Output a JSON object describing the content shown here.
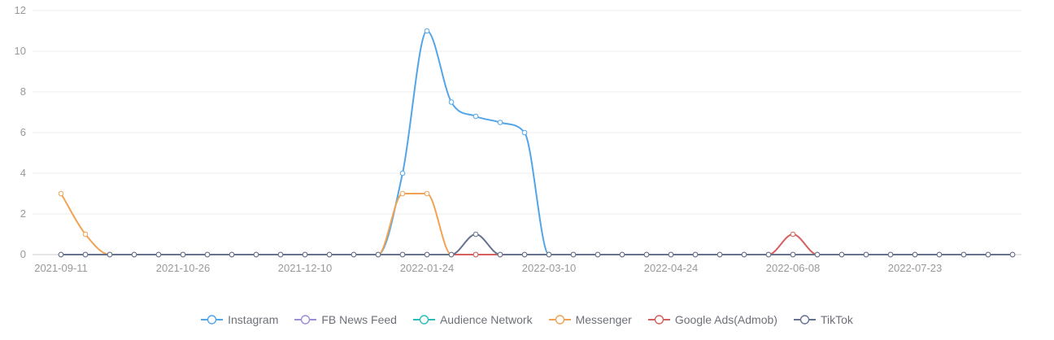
{
  "chart_data": {
    "type": "line",
    "title": "",
    "smooth": true,
    "grid": true,
    "legend_position": "bottom",
    "ylim": [
      0,
      12
    ],
    "y_ticks": [
      0,
      2,
      4,
      6,
      8,
      10,
      12
    ],
    "x": [
      "2021-09-11",
      "2021-09-20",
      "2021-09-29",
      "2021-10-08",
      "2021-10-17",
      "2021-10-26",
      "2021-11-04",
      "2021-11-13",
      "2021-11-22",
      "2021-12-01",
      "2021-12-10",
      "2021-12-19",
      "2021-12-28",
      "2022-01-06",
      "2022-01-15",
      "2022-01-24",
      "2022-02-02",
      "2022-02-11",
      "2022-02-20",
      "2022-03-01",
      "2022-03-10",
      "2022-03-19",
      "2022-03-28",
      "2022-04-06",
      "2022-04-15",
      "2022-04-24",
      "2022-05-03",
      "2022-05-12",
      "2022-05-21",
      "2022-05-30",
      "2022-06-08",
      "2022-06-17",
      "2022-06-26",
      "2022-07-05",
      "2022-07-14",
      "2022-07-23",
      "2022-08-01",
      "2022-08-10",
      "2022-08-19",
      "2022-08-28"
    ],
    "x_label_indices": [
      0,
      5,
      10,
      15,
      20,
      25,
      30,
      35
    ],
    "x_labels_shown": [
      "2021-09-11",
      "2021-10-26",
      "2021-12-10",
      "2022-01-24",
      "2022-03-10",
      "2022-04-24",
      "2022-06-08",
      "2022-07-23"
    ],
    "series": [
      {
        "name": "Instagram",
        "color": "#54a5e8",
        "values": [
          0,
          0,
          0,
          0,
          0,
          0,
          0,
          0,
          0,
          0,
          0,
          0,
          0,
          0,
          4,
          11,
          7.5,
          6.8,
          6.5,
          6,
          0,
          0,
          0,
          0,
          0,
          0,
          0,
          0,
          0,
          0,
          0,
          0,
          0,
          0,
          0,
          0,
          0,
          0,
          0,
          0
        ]
      },
      {
        "name": "FB News Feed",
        "color": "#9d8ed5",
        "values": [
          0,
          0,
          0,
          0,
          0,
          0,
          0,
          0,
          0,
          0,
          0,
          0,
          0,
          0,
          0,
          0,
          0,
          0,
          0,
          0,
          0,
          0,
          0,
          0,
          0,
          0,
          0,
          0,
          0,
          0,
          0,
          0,
          0,
          0,
          0,
          0,
          0,
          0,
          0,
          0
        ]
      },
      {
        "name": "Audience Network",
        "color": "#29bdb9",
        "values": [
          0,
          0,
          0,
          0,
          0,
          0,
          0,
          0,
          0,
          0,
          0,
          0,
          0,
          0,
          0,
          0,
          0,
          0,
          0,
          0,
          0,
          0,
          0,
          0,
          0,
          0,
          0,
          0,
          0,
          0,
          0,
          0,
          0,
          0,
          0,
          0,
          0,
          0,
          0,
          0
        ]
      },
      {
        "name": "Messenger",
        "color": "#f2a254",
        "values": [
          3,
          1,
          0,
          0,
          0,
          0,
          0,
          0,
          0,
          0,
          0,
          0,
          0,
          0,
          3,
          3,
          0,
          0,
          0,
          0,
          0,
          0,
          0,
          0,
          0,
          0,
          0,
          0,
          0,
          0,
          0,
          0,
          0,
          0,
          0,
          0,
          0,
          0,
          0,
          0
        ]
      },
      {
        "name": "Google Ads(Admob)",
        "color": "#d5605d",
        "values": [
          0,
          0,
          0,
          0,
          0,
          0,
          0,
          0,
          0,
          0,
          0,
          0,
          0,
          0,
          0,
          0,
          0,
          0,
          0,
          0,
          0,
          0,
          0,
          0,
          0,
          0,
          0,
          0,
          0,
          0,
          1,
          0,
          0,
          0,
          0,
          0,
          0,
          0,
          0,
          0
        ]
      },
      {
        "name": "TikTok",
        "color": "#66728e",
        "values": [
          0,
          0,
          0,
          0,
          0,
          0,
          0,
          0,
          0,
          0,
          0,
          0,
          0,
          0,
          0,
          0,
          0,
          1,
          0,
          0,
          0,
          0,
          0,
          0,
          0,
          0,
          0,
          0,
          0,
          0,
          0,
          0,
          0,
          0,
          0,
          0,
          0,
          0,
          0,
          0
        ]
      }
    ],
    "colors": {
      "axis_text": "#999999",
      "axis_line": "#cccccc",
      "grid_line": "#eeeeee",
      "marker_fill": "#ffffff",
      "legend_text": "#6e7079"
    }
  }
}
